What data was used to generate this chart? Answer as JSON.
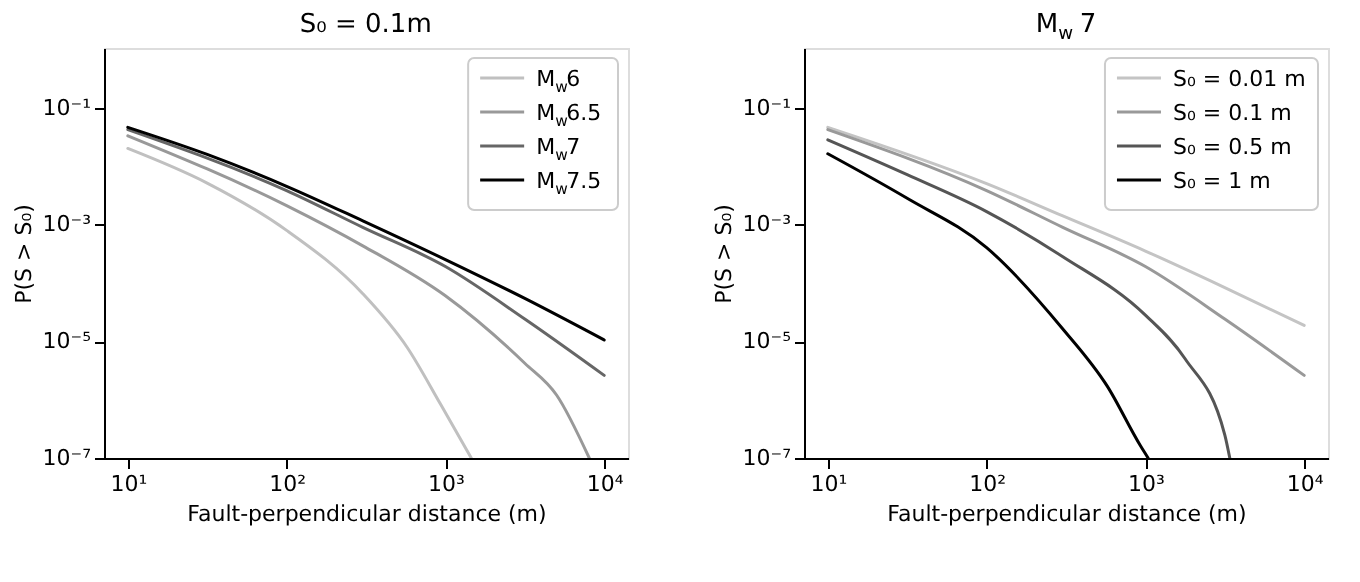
{
  "chart_data": [
    {
      "type": "line",
      "title": "S₀ = 0.1m",
      "xlabel": "Fault-perpendicular distance (m)",
      "ylabel": "P(S > S₀)",
      "log": "xy",
      "grid": false,
      "legend": "top right",
      "xlim": [
        7.08,
        14125
      ],
      "ylim": [
        1e-07,
        1.05
      ],
      "xticks": [
        {
          "value": 10,
          "label": "10¹"
        },
        {
          "value": 100,
          "label": "10²"
        },
        {
          "value": 1000,
          "label": "10³"
        },
        {
          "value": 10000,
          "label": "10⁴"
        }
      ],
      "yticks": [
        {
          "value": 1e-07,
          "label": "10⁻⁷"
        },
        {
          "value": 1e-05,
          "label": "10⁻⁵"
        },
        {
          "value": 0.001,
          "label": "10⁻³"
        },
        {
          "value": 0.1,
          "label": "10⁻¹"
        }
      ],
      "series": [
        {
          "name": "M$_{w}$6",
          "color": "#c0c0c0",
          "x": [
            10,
            31.6,
            100,
            302,
            575,
            933,
            1455
          ],
          "values": [
            0.02,
            0.0051,
            0.00079,
            6.5e-05,
            7.8e-06,
            8.3e-07,
            1e-07
          ]
        },
        {
          "name": "M$_{w}$6.5",
          "color": "#999999",
          "x": [
            10,
            100,
            302,
            1000,
            3162,
            5012,
            8050
          ],
          "values": [
            0.033,
            0.0021,
            0.00043,
            6e-05,
            4.2e-06,
            1.2e-06,
            1e-07
          ]
        },
        {
          "name": "M$_{w}$7",
          "color": "#666666",
          "x": [
            10,
            100,
            302,
            1000,
            3162,
            10000
          ],
          "values": [
            0.042,
            0.0038,
            0.00089,
            0.00019,
            2.4e-05,
            2.6e-06
          ]
        },
        {
          "name": "M$_{w}$7.5",
          "color": "#000000",
          "x": [
            10,
            31.6,
            100,
            302,
            1000,
            3162,
            10000
          ],
          "values": [
            0.046,
            0.0158,
            0.0045,
            0.00115,
            0.00025,
            5.4e-05,
            1.05e-05
          ]
        }
      ]
    },
    {
      "type": "line",
      "title": "M$_{w}$ 7",
      "xlabel": "Fault-perpendicular distance (m)",
      "ylabel": "P(S > S₀)",
      "log": "xy",
      "grid": false,
      "legend": "top right",
      "xlim": [
        7.08,
        14125
      ],
      "ylim": [
        1e-07,
        1.05
      ],
      "xticks": [
        {
          "value": 10,
          "label": "10¹"
        },
        {
          "value": 100,
          "label": "10²"
        },
        {
          "value": 1000,
          "label": "10³"
        },
        {
          "value": 10000,
          "label": "10⁴"
        }
      ],
      "yticks": [
        {
          "value": 1e-07,
          "label": "10⁻⁷"
        },
        {
          "value": 1e-05,
          "label": "10⁻⁵"
        },
        {
          "value": 0.001,
          "label": "10⁻³"
        },
        {
          "value": 0.1,
          "label": "10⁻¹"
        }
      ],
      "series": [
        {
          "name": "S₀ = 0.01 m",
          "color": "#c4c4c4",
          "x": [
            10,
            100,
            302,
            1000,
            3162,
            10000
          ],
          "values": [
            0.046,
            0.005,
            0.0014,
            0.00035,
            8.3e-05,
            1.86e-05
          ]
        },
        {
          "name": "S₀ = 0.1 m",
          "color": "#999999",
          "x": [
            10,
            100,
            302,
            1000,
            3162,
            10000
          ],
          "values": [
            0.042,
            0.0038,
            0.00089,
            0.00019,
            2.4e-05,
            2.6e-06
          ]
        },
        {
          "name": "S₀ = 0.5 m",
          "color": "#555555",
          "x": [
            10,
            31.6,
            100,
            302,
            1000,
            1778,
            3162,
            3400
          ],
          "values": [
            0.028,
            0.0071,
            0.00166,
            0.00028,
            2.8e-05,
            5e-06,
            2.5e-07,
            1e-07
          ]
        },
        {
          "name": "S₀ = 1 m",
          "color": "#000000",
          "x": [
            10,
            31.6,
            100,
            302,
            575,
            933,
            1040
          ],
          "values": [
            0.0162,
            0.0028,
            0.0004,
            1.62e-05,
            1.7e-06,
            1.6e-07,
            1e-07
          ]
        }
      ]
    }
  ]
}
